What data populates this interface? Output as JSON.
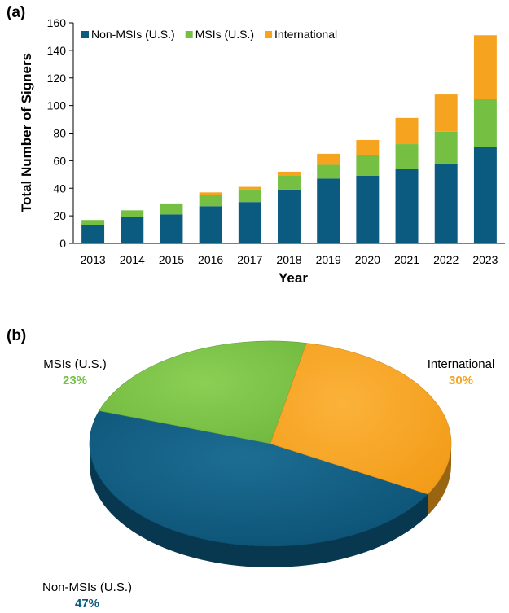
{
  "chart_data": [
    {
      "type": "bar",
      "panel_label": "(a)",
      "title": "",
      "xlabel": "Year",
      "ylabel": "Total Number of Signers",
      "ylim": [
        0,
        160
      ],
      "yticks": [
        "0",
        "20",
        "40",
        "60",
        "80",
        "100",
        "120",
        "140",
        "160"
      ],
      "categories": [
        "2013",
        "2014",
        "2015",
        "2016",
        "2017",
        "2018",
        "2019",
        "2020",
        "2021",
        "2022",
        "2023"
      ],
      "stacked": true,
      "legend_position": "top-left",
      "grid": false,
      "series": [
        {
          "name": "Non-MSIs (U.S.)",
          "color": "#0b5a80",
          "values": [
            13,
            19,
            21,
            27,
            30,
            39,
            47,
            49,
            54,
            58,
            70
          ]
        },
        {
          "name": "MSIs (U.S.)",
          "color": "#75c043",
          "values": [
            4,
            5,
            8,
            8,
            9,
            10,
            10,
            15,
            18,
            23,
            35
          ]
        },
        {
          "name": "International",
          "color": "#f6a31f",
          "values": [
            0,
            0,
            0,
            2,
            2,
            3,
            8,
            11,
            19,
            27,
            46
          ]
        }
      ]
    },
    {
      "type": "pie",
      "panel_label": "(b)",
      "title": "",
      "style": "3d",
      "slices": [
        {
          "name": "Non-MSIs (U.S.)",
          "pct_label": "47%",
          "value": 47,
          "color": "#0b5a80"
        },
        {
          "name": "MSIs (U.S.)",
          "pct_label": "23%",
          "value": 23,
          "color": "#75c043"
        },
        {
          "name": "International",
          "pct_label": "30%",
          "value": 30,
          "color": "#f6a31f"
        }
      ]
    }
  ]
}
